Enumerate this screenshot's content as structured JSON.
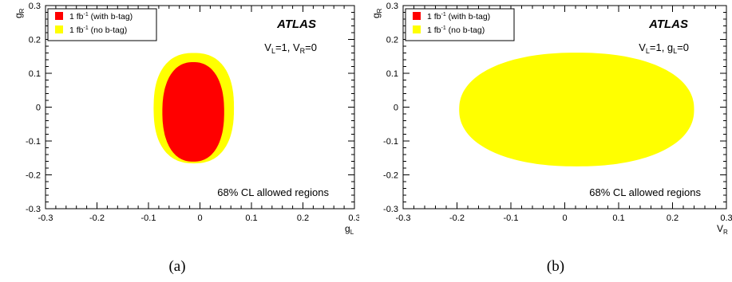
{
  "chart_data": [
    {
      "type": "area",
      "panel": "a",
      "caption": "(a)",
      "xlabel": "g",
      "xlabel_sub": "L",
      "ylabel": "g",
      "ylabel_sub": "R",
      "xlim": [
        -0.3,
        0.3
      ],
      "ylim": [
        -0.3,
        0.3
      ],
      "xticks": [
        -0.3,
        -0.2,
        -0.1,
        0,
        0.1,
        0.2,
        0.3
      ],
      "yticks": [
        -0.3,
        -0.2,
        -0.1,
        0,
        0.1,
        0.2,
        0.3
      ],
      "brand": "ATLAS",
      "condition": {
        "line1_main": "V",
        "line1_sub": "L",
        "line1_rest": "=1, V",
        "line2_sub": "R",
        "line2_rest": "=0"
      },
      "annotation": "68% CL allowed regions",
      "legend_position": "top-left",
      "series": [
        {
          "name": "1 fb",
          "name_sup": "-1",
          "name_suffix": " (no b-tag)",
          "color": "#ffff00",
          "region": {
            "cx": -0.012,
            "cy": -0.003,
            "rx": 0.078,
            "ry": 0.163,
            "exponent": 2.4
          }
        },
        {
          "name": "1 fb",
          "name_sup": "-1",
          "name_suffix": " (with b-tag)",
          "color": "#ff0000",
          "region": {
            "cx": -0.013,
            "cy": -0.014,
            "rx": 0.06,
            "ry": 0.147,
            "exponent": 2.3
          }
        }
      ]
    },
    {
      "type": "area",
      "panel": "b",
      "caption": "(b)",
      "xlabel": "V",
      "xlabel_sub": "R",
      "ylabel": "g",
      "ylabel_sub": "R",
      "xlim": [
        -0.3,
        0.3
      ],
      "ylim": [
        -0.3,
        0.3
      ],
      "xticks": [
        -0.3,
        -0.2,
        -0.1,
        0,
        0.1,
        0.2,
        0.3
      ],
      "yticks": [
        -0.3,
        -0.2,
        -0.1,
        0,
        0.1,
        0.2,
        0.3
      ],
      "brand": "ATLAS",
      "condition": {
        "line1_main": "V",
        "line1_sub": "L",
        "line1_rest": "=1, g",
        "line2_sub": "L",
        "line2_rest": "=0"
      },
      "annotation": "68% CL allowed regions",
      "legend_position": "top-left",
      "series": [
        {
          "name": "1 fb",
          "name_sup": "-1",
          "name_suffix": " (with b-tag)",
          "color": "#ff0000",
          "region": {
            "cx": 0.022,
            "cy": -0.017,
            "rx": 0.162,
            "ry": 0.149,
            "exponent": 2.5
          }
        },
        {
          "name": "1 fb",
          "name_sup": "-1",
          "name_suffix": " (no b-tag)",
          "color": "#ffff00",
          "region": {
            "cx": 0.022,
            "cy": -0.007,
            "rx": 0.218,
            "ry": 0.168,
            "exponent": 2.2
          }
        }
      ]
    }
  ]
}
